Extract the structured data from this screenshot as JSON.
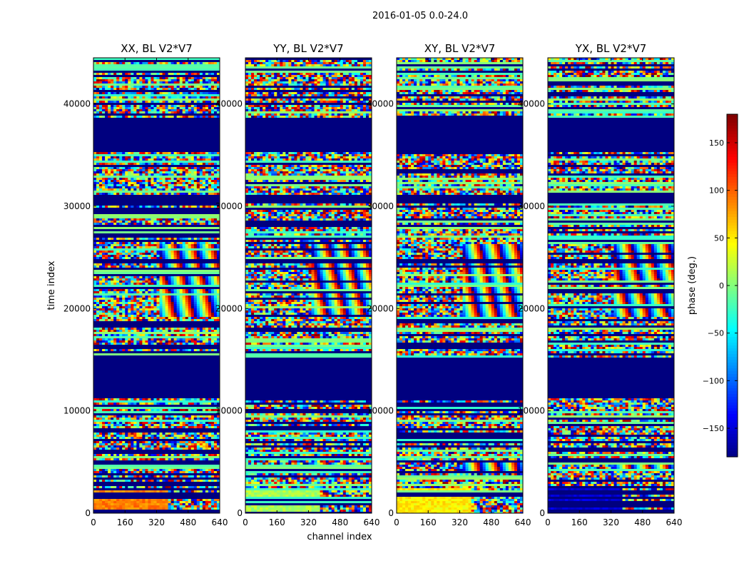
{
  "chart_data": {
    "type": "heatmap",
    "suptitle": "2016-01-05 0.0-24.0",
    "xlabel": "channel index",
    "ylabel": "time index",
    "xlim": [
      0,
      640
    ],
    "ylim": [
      0,
      44500
    ],
    "xticks": [
      0,
      160,
      320,
      480,
      640
    ],
    "yticks": [
      0,
      10000,
      20000,
      30000,
      40000
    ],
    "panels": [
      {
        "title": "XX, BL V2*V7",
        "low_band_phase": 90
      },
      {
        "title": "YY, BL V2*V7",
        "low_band_phase": 15
      },
      {
        "title": "XY, BL V2*V7",
        "low_band_phase": 50
      },
      {
        "title": "YX, BL V2*V7",
        "low_band_phase": -150
      }
    ],
    "colorbar": {
      "label": "phase (deg.)",
      "range": [
        -180,
        180
      ],
      "ticks": [
        -150,
        -100,
        -50,
        0,
        50,
        100,
        150
      ],
      "colormap": "jet"
    },
    "flagged_rows_color": "#00007f",
    "flagged_time_ranges": [
      [
        30300,
        31200
      ],
      [
        35300,
        38800
      ],
      [
        11400,
        15300
      ],
      [
        24600,
        25000
      ]
    ],
    "fringe_time_ranges": [
      [
        19200,
        24600
      ],
      [
        25000,
        26400
      ],
      [
        4200,
        5000
      ]
    ]
  }
}
